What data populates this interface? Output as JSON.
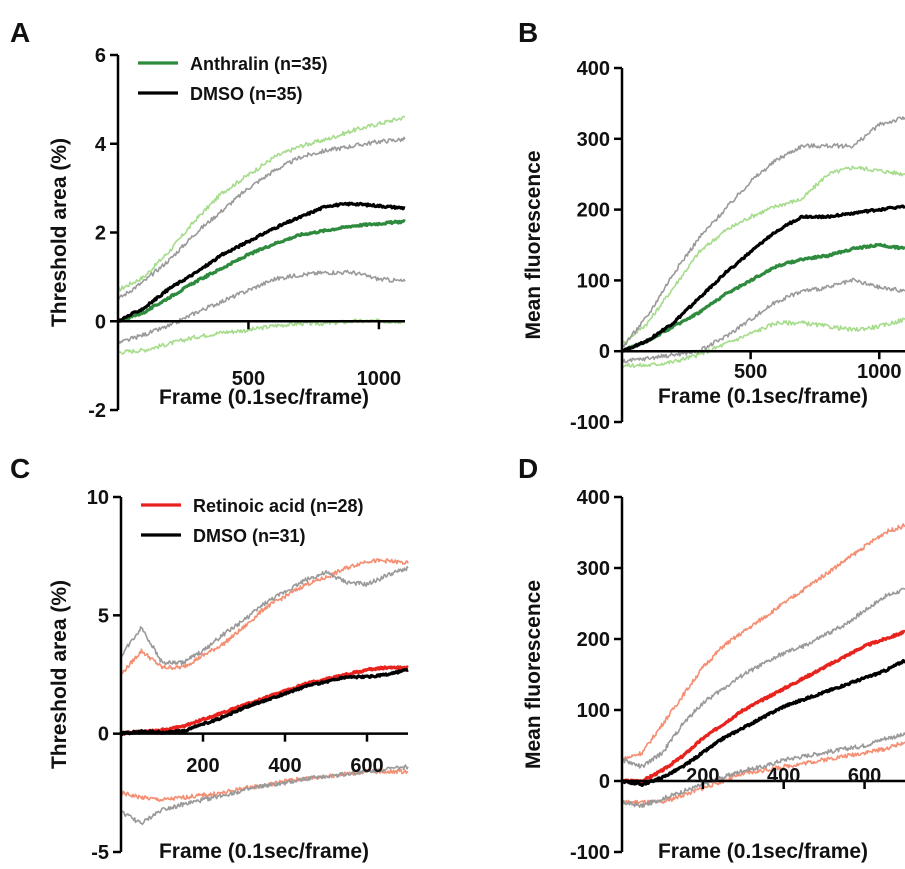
{
  "figure": {
    "panels": [
      "A",
      "B",
      "C",
      "D"
    ]
  },
  "colors": {
    "anthralin": "#2e8b3e",
    "anthralin_sd": "#a6dc8c",
    "dmso": "#000000",
    "dmso_sd": "#9a9a9a",
    "retinoic": "#e8231d",
    "retinoic_sd": "#f58f73"
  },
  "chart_data": [
    {
      "panel": "A",
      "type": "line",
      "xlabel": "Frame (0.1sec/frame)",
      "ylabel": "Threshold area (%)",
      "xlim": [
        0,
        1100
      ],
      "ylim": [
        -2,
        6
      ],
      "xticks": [
        500,
        1000
      ],
      "yticks": [
        -2,
        0,
        2,
        4,
        6
      ],
      "grid": false,
      "legend": "top-left",
      "series": [
        {
          "name": "Anthralin (n=35)",
          "role": "mean",
          "color": "#2e8b3e",
          "x": [
            0,
            100,
            200,
            300,
            400,
            500,
            600,
            700,
            800,
            900,
            1000,
            1100
          ],
          "y": [
            0,
            0.2,
            0.55,
            0.9,
            1.2,
            1.5,
            1.75,
            1.95,
            2.05,
            2.15,
            2.2,
            2.25
          ]
        },
        {
          "role": "+SD",
          "color": "#a6dc8c",
          "x": [
            0,
            100,
            200,
            300,
            400,
            500,
            600,
            700,
            800,
            900,
            1000,
            1100
          ],
          "y": [
            0.7,
            1.0,
            1.6,
            2.3,
            2.9,
            3.3,
            3.7,
            3.95,
            4.1,
            4.3,
            4.45,
            4.6
          ]
        },
        {
          "role": "-SD",
          "color": "#a6dc8c",
          "x": [
            0,
            100,
            200,
            300,
            400,
            500,
            600,
            700,
            800,
            900,
            1000,
            1100
          ],
          "y": [
            -0.7,
            -0.65,
            -0.5,
            -0.35,
            -0.25,
            -0.2,
            -0.1,
            -0.05,
            -0.05,
            0,
            0,
            0
          ]
        },
        {
          "name": "DMSO (n=35)",
          "role": "mean",
          "color": "#000000",
          "x": [
            0,
            100,
            200,
            300,
            400,
            500,
            600,
            700,
            800,
            900,
            1000,
            1100
          ],
          "y": [
            0,
            0.3,
            0.75,
            1.1,
            1.5,
            1.8,
            2.1,
            2.35,
            2.6,
            2.65,
            2.6,
            2.55
          ]
        },
        {
          "role": "+SD",
          "color": "#9a9a9a",
          "x": [
            0,
            100,
            200,
            300,
            400,
            500,
            600,
            700,
            800,
            900,
            1000,
            1100
          ],
          "y": [
            0.5,
            0.9,
            1.4,
            2.0,
            2.5,
            3.0,
            3.4,
            3.7,
            3.85,
            3.95,
            4.05,
            4.1
          ]
        },
        {
          "role": "-SD",
          "color": "#9a9a9a",
          "x": [
            0,
            100,
            200,
            300,
            400,
            500,
            600,
            700,
            800,
            900,
            1000,
            1100
          ],
          "y": [
            -0.5,
            -0.3,
            -0.1,
            0.2,
            0.45,
            0.7,
            0.95,
            1.05,
            1.1,
            1.1,
            0.95,
            0.9
          ]
        }
      ]
    },
    {
      "panel": "B",
      "type": "line",
      "xlabel": "Frame (0.1sec/frame)",
      "ylabel": "Mean fluorescence",
      "xlim": [
        0,
        1100
      ],
      "ylim": [
        -100,
        400
      ],
      "xticks": [
        500,
        1000
      ],
      "xtick_labels": [
        "500",
        "1000"
      ],
      "yticks": [
        -100,
        0,
        100,
        200,
        300,
        400
      ],
      "grid": false,
      "series": [
        {
          "role": "mean",
          "color": "#2e8b3e",
          "x": [
            0,
            100,
            200,
            300,
            400,
            500,
            600,
            700,
            800,
            900,
            1000,
            1100
          ],
          "y": [
            0,
            15,
            35,
            55,
            80,
            100,
            120,
            130,
            135,
            145,
            150,
            145
          ]
        },
        {
          "role": "+SD",
          "color": "#a6dc8c",
          "x": [
            0,
            100,
            200,
            300,
            400,
            500,
            600,
            700,
            800,
            900,
            1000,
            1100
          ],
          "y": [
            10,
            40,
            90,
            140,
            170,
            190,
            205,
            215,
            250,
            260,
            255,
            250
          ]
        },
        {
          "role": "-SD",
          "color": "#a6dc8c",
          "x": [
            0,
            100,
            200,
            300,
            400,
            500,
            600,
            700,
            800,
            900,
            1000,
            1100
          ],
          "y": [
            -20,
            -20,
            -15,
            -5,
            10,
            25,
            40,
            40,
            35,
            30,
            35,
            45
          ]
        },
        {
          "role": "mean",
          "color": "#000000",
          "x": [
            0,
            100,
            200,
            300,
            400,
            500,
            600,
            700,
            800,
            900,
            1000,
            1100
          ],
          "y": [
            0,
            15,
            40,
            75,
            110,
            140,
            170,
            190,
            190,
            195,
            200,
            205
          ]
        },
        {
          "role": "+SD",
          "color": "#9a9a9a",
          "x": [
            0,
            100,
            200,
            300,
            400,
            500,
            600,
            700,
            800,
            900,
            1000,
            1100
          ],
          "y": [
            5,
            50,
            110,
            160,
            200,
            240,
            270,
            290,
            290,
            290,
            320,
            330
          ]
        },
        {
          "role": "-SD",
          "color": "#9a9a9a",
          "x": [
            0,
            100,
            200,
            300,
            400,
            500,
            600,
            700,
            800,
            900,
            1000,
            1100
          ],
          "y": [
            -15,
            -10,
            -5,
            0,
            20,
            45,
            70,
            85,
            90,
            100,
            90,
            85
          ]
        }
      ]
    },
    {
      "panel": "C",
      "type": "line",
      "xlabel": "Frame (0.1sec/frame)",
      "ylabel": "Threshold area (%)",
      "xlim": [
        0,
        700
      ],
      "ylim": [
        -5,
        10
      ],
      "xticks": [
        200,
        400,
        600
      ],
      "yticks": [
        -5,
        0,
        5,
        10
      ],
      "grid": false,
      "legend": "top-left",
      "series": [
        {
          "name": "Retinoic acid (n=28)",
          "role": "mean",
          "color": "#e8231d",
          "x": [
            0,
            50,
            100,
            150,
            200,
            250,
            300,
            350,
            400,
            450,
            500,
            550,
            600,
            650,
            700
          ],
          "y": [
            0,
            0.1,
            0.15,
            0.3,
            0.6,
            0.9,
            1.2,
            1.5,
            1.8,
            2.1,
            2.3,
            2.5,
            2.7,
            2.8,
            2.8
          ]
        },
        {
          "role": "+SD",
          "color": "#f58f73",
          "x": [
            0,
            50,
            100,
            150,
            200,
            250,
            300,
            350,
            400,
            450,
            500,
            550,
            600,
            650,
            700
          ],
          "y": [
            2.5,
            3.5,
            2.8,
            2.8,
            3.3,
            3.8,
            4.5,
            5.3,
            5.8,
            6.3,
            6.6,
            7.0,
            7.3,
            7.3,
            7.2
          ]
        },
        {
          "role": "-SD",
          "color": "#f58f73",
          "x": [
            0,
            50,
            100,
            150,
            200,
            250,
            300,
            350,
            400,
            450,
            500,
            550,
            600,
            650,
            700
          ],
          "y": [
            -2.5,
            -2.7,
            -2.8,
            -2.7,
            -2.6,
            -2.5,
            -2.3,
            -2.2,
            -2.0,
            -1.9,
            -1.8,
            -1.7,
            -1.6,
            -1.6,
            -1.6
          ]
        },
        {
          "name": "DMSO (n=31)",
          "role": "mean",
          "color": "#000000",
          "x": [
            0,
            50,
            100,
            150,
            200,
            250,
            300,
            350,
            400,
            450,
            500,
            550,
            600,
            650,
            700
          ],
          "y": [
            0,
            0.1,
            0.05,
            0.1,
            0.4,
            0.7,
            1.1,
            1.4,
            1.7,
            2.0,
            2.2,
            2.4,
            2.4,
            2.5,
            2.7
          ]
        },
        {
          "role": "+SD",
          "color": "#9a9a9a",
          "x": [
            0,
            50,
            100,
            150,
            200,
            250,
            300,
            350,
            400,
            450,
            500,
            550,
            600,
            650,
            700
          ],
          "y": [
            3.3,
            4.5,
            3.0,
            3.0,
            3.5,
            4.2,
            4.8,
            5.5,
            6.0,
            6.5,
            6.8,
            6.4,
            6.3,
            6.7,
            7.0
          ]
        },
        {
          "role": "-SD",
          "color": "#9a9a9a",
          "x": [
            0,
            50,
            100,
            150,
            200,
            250,
            300,
            350,
            400,
            450,
            500,
            550,
            600,
            650,
            700
          ],
          "y": [
            -3.3,
            -3.8,
            -3.2,
            -3.0,
            -2.8,
            -2.6,
            -2.4,
            -2.2,
            -2.1,
            -1.9,
            -1.8,
            -1.7,
            -1.6,
            -1.5,
            -1.4
          ]
        }
      ]
    },
    {
      "panel": "D",
      "type": "line",
      "xlabel": "Frame (0.1sec/frame)",
      "ylabel": "Mean fluorescence",
      "xlim": [
        0,
        700
      ],
      "ylim": [
        -100,
        400
      ],
      "xticks": [
        200,
        400,
        600
      ],
      "yticks": [
        -100,
        0,
        100,
        200,
        300,
        400
      ],
      "grid": false,
      "series": [
        {
          "role": "mean",
          "color": "#e8231d",
          "x": [
            0,
            50,
            100,
            150,
            200,
            250,
            300,
            350,
            400,
            450,
            500,
            550,
            600,
            650,
            700
          ],
          "y": [
            0,
            0,
            15,
            35,
            60,
            80,
            100,
            115,
            130,
            145,
            160,
            175,
            190,
            200,
            210
          ]
        },
        {
          "role": "+SD",
          "color": "#f58f73",
          "x": [
            0,
            50,
            100,
            150,
            200,
            250,
            300,
            350,
            400,
            450,
            500,
            550,
            600,
            650,
            700
          ],
          "y": [
            30,
            40,
            80,
            120,
            160,
            190,
            210,
            230,
            250,
            270,
            290,
            310,
            330,
            350,
            360
          ]
        },
        {
          "role": "-SD",
          "color": "#f58f73",
          "x": [
            0,
            50,
            100,
            150,
            200,
            250,
            300,
            350,
            400,
            450,
            500,
            550,
            600,
            650,
            700
          ],
          "y": [
            -30,
            -30,
            -30,
            -20,
            -10,
            0,
            10,
            15,
            20,
            25,
            30,
            35,
            40,
            45,
            55
          ]
        },
        {
          "role": "mean",
          "color": "#000000",
          "x": [
            0,
            50,
            100,
            150,
            200,
            250,
            300,
            350,
            400,
            450,
            500,
            550,
            600,
            650,
            700
          ],
          "y": [
            0,
            -5,
            5,
            20,
            40,
            60,
            75,
            90,
            105,
            115,
            125,
            135,
            145,
            155,
            170
          ]
        },
        {
          "role": "+SD",
          "color": "#9a9a9a",
          "x": [
            0,
            50,
            100,
            150,
            200,
            250,
            300,
            350,
            400,
            450,
            500,
            550,
            600,
            650,
            700
          ],
          "y": [
            30,
            20,
            40,
            80,
            110,
            130,
            150,
            165,
            180,
            190,
            205,
            220,
            240,
            260,
            270
          ]
        },
        {
          "role": "-SD",
          "color": "#9a9a9a",
          "x": [
            0,
            50,
            100,
            150,
            200,
            250,
            300,
            350,
            400,
            450,
            500,
            550,
            600,
            650,
            700
          ],
          "y": [
            -30,
            -35,
            -25,
            -15,
            -5,
            5,
            15,
            20,
            30,
            35,
            40,
            45,
            50,
            60,
            65
          ]
        }
      ]
    }
  ]
}
